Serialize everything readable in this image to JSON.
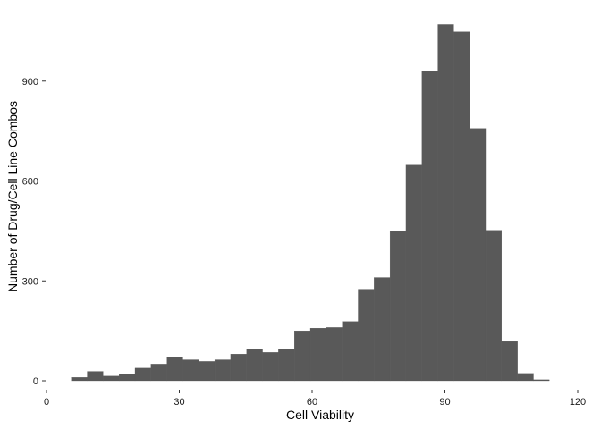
{
  "chart_data": {
    "type": "histogram",
    "xlabel": "Cell Viability",
    "ylabel": "Number of Drug/Cell Line Combos",
    "xlim": [
      0,
      120
    ],
    "ylim": [
      0,
      1090
    ],
    "xticks": [
      0,
      30,
      60,
      90,
      120
    ],
    "xtick_labels": [
      "0",
      "30",
      "60",
      "90",
      "120"
    ],
    "yticks": [
      0,
      300,
      600,
      900
    ],
    "ytick_labels": [
      "0",
      "300",
      "600",
      "900"
    ],
    "grid": false,
    "legend": "none",
    "bar_color": "#595959",
    "bin_width": 3.6,
    "bins": [
      {
        "x0": 5.6,
        "x1": 9.2,
        "count": 10
      },
      {
        "x0": 9.2,
        "x1": 12.8,
        "count": 28
      },
      {
        "x0": 12.8,
        "x1": 16.4,
        "count": 14
      },
      {
        "x0": 16.4,
        "x1": 20.0,
        "count": 20
      },
      {
        "x0": 20.0,
        "x1": 23.6,
        "count": 38
      },
      {
        "x0": 23.6,
        "x1": 27.2,
        "count": 50
      },
      {
        "x0": 27.2,
        "x1": 30.8,
        "count": 70
      },
      {
        "x0": 30.8,
        "x1": 34.4,
        "count": 63
      },
      {
        "x0": 34.4,
        "x1": 38.0,
        "count": 58
      },
      {
        "x0": 38.0,
        "x1": 41.6,
        "count": 63
      },
      {
        "x0": 41.6,
        "x1": 45.2,
        "count": 80
      },
      {
        "x0": 45.2,
        "x1": 48.8,
        "count": 95
      },
      {
        "x0": 48.8,
        "x1": 52.4,
        "count": 85
      },
      {
        "x0": 52.4,
        "x1": 56.0,
        "count": 95
      },
      {
        "x0": 56.0,
        "x1": 59.6,
        "count": 150
      },
      {
        "x0": 59.6,
        "x1": 63.2,
        "count": 158
      },
      {
        "x0": 63.2,
        "x1": 66.8,
        "count": 160
      },
      {
        "x0": 66.8,
        "x1": 70.4,
        "count": 178
      },
      {
        "x0": 70.4,
        "x1": 74.0,
        "count": 275
      },
      {
        "x0": 74.0,
        "x1": 77.6,
        "count": 310
      },
      {
        "x0": 77.6,
        "x1": 81.2,
        "count": 450
      },
      {
        "x0": 81.2,
        "x1": 84.8,
        "count": 648
      },
      {
        "x0": 84.8,
        "x1": 88.4,
        "count": 930
      },
      {
        "x0": 88.4,
        "x1": 92.0,
        "count": 1070
      },
      {
        "x0": 92.0,
        "x1": 95.6,
        "count": 1048
      },
      {
        "x0": 95.6,
        "x1": 99.2,
        "count": 758
      },
      {
        "x0": 99.2,
        "x1": 102.8,
        "count": 452
      },
      {
        "x0": 102.8,
        "x1": 106.4,
        "count": 118
      },
      {
        "x0": 106.4,
        "x1": 110.0,
        "count": 22
      },
      {
        "x0": 110.0,
        "x1": 113.6,
        "count": 3
      }
    ]
  }
}
